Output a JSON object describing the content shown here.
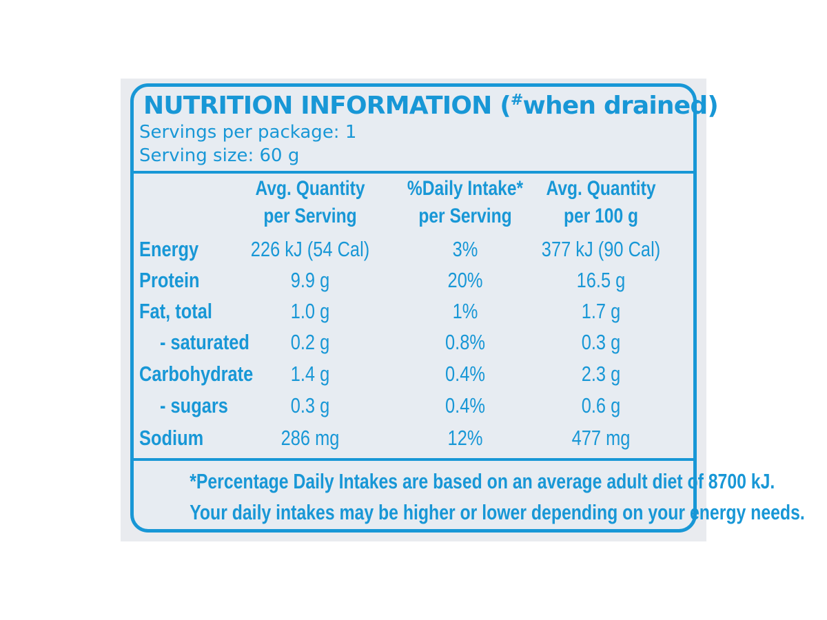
{
  "label": {
    "title": "NUTRITION INFORMATION",
    "title_note_mark": "#",
    "title_note": "when drained",
    "servings_per_package": "Servings per package: 1",
    "serving_size": "Serving size: 60 g",
    "colors": {
      "accent": "#1897d6",
      "panel": "#e7ecf2",
      "backdrop": "#e9ebef"
    }
  },
  "table": {
    "headers": [
      {
        "line1": "Avg. Quantity",
        "line2": "per Serving"
      },
      {
        "line1": "%Daily Intake*",
        "line2": "per Serving"
      },
      {
        "line1": "Avg. Quantity",
        "line2": "per 100 g"
      }
    ],
    "rows": [
      {
        "label": "Energy",
        "per_serving": "226 kJ (54 Cal)",
        "daily_intake": "3%",
        "per_100g": "377 kJ (90 Cal)"
      },
      {
        "label": "Protein",
        "per_serving": "9.9 g",
        "daily_intake": "20%",
        "per_100g": "16.5 g"
      },
      {
        "label": "Fat, total",
        "per_serving": "1.0 g",
        "daily_intake": "1%",
        "per_100g": "1.7 g"
      },
      {
        "label": "- saturated",
        "per_serving": "0.2 g",
        "daily_intake": "0.8%",
        "per_100g": "0.3 g"
      },
      {
        "label": "Carbohydrate",
        "per_serving": "1.4 g",
        "daily_intake": "0.4%",
        "per_100g": "2.3 g"
      },
      {
        "label": "- sugars",
        "per_serving": "0.3 g",
        "daily_intake": "0.4%",
        "per_100g": "0.6 g"
      },
      {
        "label": "Sodium",
        "per_serving": "286 mg",
        "daily_intake": "12%",
        "per_100g": "477 mg"
      }
    ]
  },
  "footnote": {
    "line1": "*Percentage Daily Intakes are based on an average adult diet of 8700 kJ.",
    "line2": "Your daily intakes may be higher or lower depending on your energy needs."
  }
}
